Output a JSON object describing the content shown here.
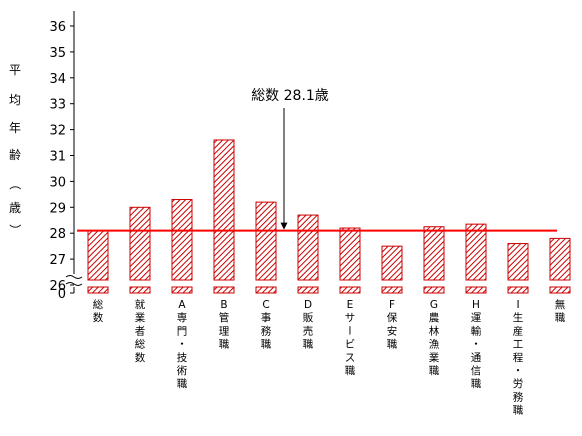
{
  "chart_data": {
    "type": "bar",
    "ylabel_chars": [
      "平",
      "均",
      "年",
      "齢",
      "（",
      "歳",
      "）"
    ],
    "axis_break_bottom_tick": "0",
    "ylim": [
      26,
      36
    ],
    "yticks": [
      "26",
      "27",
      "28",
      "29",
      "30",
      "31",
      "32",
      "33",
      "34",
      "35",
      "36"
    ],
    "categories": [
      {
        "label": "総数",
        "chars": [
          "総",
          "数"
        ]
      },
      {
        "label": "就業者総数",
        "chars": [
          "就",
          "業",
          "者",
          "総",
          "数"
        ]
      },
      {
        "label": "A専門・技術職",
        "chars": [
          "A",
          "専",
          "門",
          "・",
          "技",
          "術",
          "職"
        ]
      },
      {
        "label": "B管理職",
        "chars": [
          "B",
          "管",
          "理",
          "職"
        ]
      },
      {
        "label": "C事務職",
        "chars": [
          "C",
          "事",
          "務",
          "職"
        ]
      },
      {
        "label": "D販売職",
        "chars": [
          "D",
          "販",
          "売",
          "職"
        ]
      },
      {
        "label": "Eサービス職",
        "chars": [
          "E",
          "サ",
          "ー",
          "ビ",
          "ス",
          "職"
        ]
      },
      {
        "label": "F保安職",
        "chars": [
          "F",
          "保",
          "安",
          "職"
        ]
      },
      {
        "label": "G農林漁業職",
        "chars": [
          "G",
          "農",
          "林",
          "漁",
          "業",
          "職"
        ]
      },
      {
        "label": "H運輸・通信職",
        "chars": [
          "H",
          "運",
          "輸",
          "・",
          "通",
          "信",
          "職"
        ]
      },
      {
        "label": "I生産工程・労務職",
        "chars": [
          "I",
          "生",
          "産",
          "工",
          "程",
          "・",
          "労",
          "務",
          "職"
        ]
      },
      {
        "label": "無職",
        "chars": [
          "無",
          "職"
        ]
      }
    ],
    "values": [
      28.1,
      29.0,
      29.3,
      31.6,
      29.2,
      28.7,
      28.2,
      27.5,
      28.25,
      28.35,
      27.6,
      27.8
    ],
    "reference_line": {
      "value": 28.1,
      "annotation": "総数 28.1歳"
    },
    "colors": {
      "bar_stroke": "#cc0000",
      "bar_hatch": "#cc0000",
      "reference_line": "#ff0000"
    }
  }
}
